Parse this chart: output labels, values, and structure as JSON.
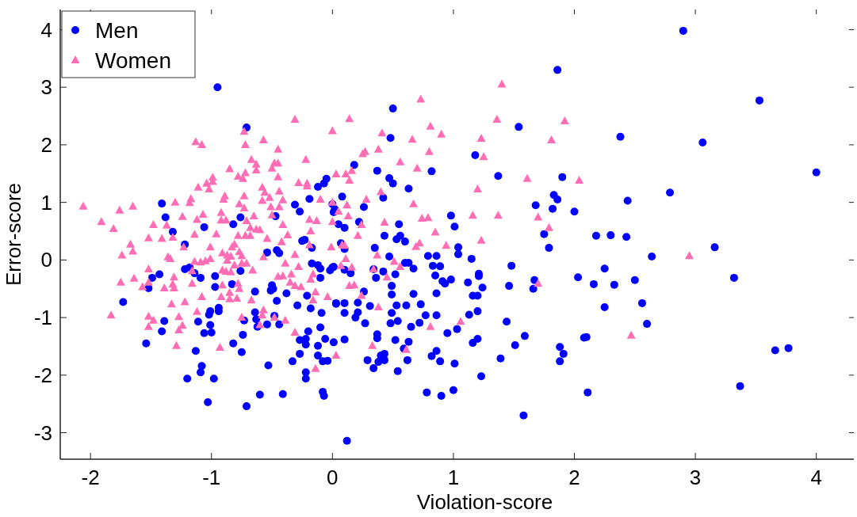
{
  "chart_data": {
    "type": "scatter",
    "xlabel": "Violation-score",
    "ylabel": "Error-score",
    "xlim": [
      -2.25,
      4.31
    ],
    "ylim": [
      -3.46,
      4.35
    ],
    "xticks": [
      -2,
      -1,
      0,
      1,
      2,
      3,
      4
    ],
    "yticks": [
      -3,
      -2,
      -1,
      0,
      1,
      2,
      3,
      4
    ],
    "legend": "top left",
    "grid": false,
    "series": [
      {
        "name": "Men",
        "color": "#0000ff",
        "marker": "circle",
        "x": [
          -0.95,
          -0.71,
          2.9,
          1.86,
          4.0,
          3.53,
          3.06,
          2.38,
          1.54,
          0.5,
          0.48,
          0.12,
          1.58,
          3.37,
          3.66,
          3.77,
          3.32,
          3.16,
          2.79,
          2.44,
          1.9,
          2.18,
          2.3,
          2.43,
          2.64,
          2.25,
          2.16,
          2.33,
          2.5,
          2.25,
          2.56,
          2.6,
          2.1,
          2.11,
          1.18,
          0.18,
          0.37,
          0.82,
          0.47,
          0.5,
          0.63,
          1.37,
          0.08,
          0.42,
          1.83,
          1.86,
          1.68,
          1.82,
          2.0,
          0.26,
          0.02,
          0.98,
          1.01,
          0.55,
          0.22,
          0.1,
          0.43,
          0.56,
          0.53,
          1.75,
          0.6,
          0.35,
          1.04,
          1.04,
          1.15,
          1.79,
          0.1,
          0.07,
          0.47,
          0.79,
          0.86,
          0.6,
          0.63,
          0.67,
          0.83,
          0.89,
          1.48,
          2.03,
          0.01,
          0.1,
          0.15,
          0.34,
          0.42,
          0.36,
          0.52,
          0.85,
          0.91,
          0.93,
          0.98,
          1.12,
          1.21,
          1.21,
          1.24,
          1.16,
          1.2,
          1.46,
          1.67,
          1.66,
          0.26,
          0.49,
          0.49,
          0.67,
          0.86,
          0.03,
          0.1,
          0.21,
          0.31,
          0.53,
          0.61,
          0.73,
          0.1,
          0.21,
          0.19,
          0.49,
          0.27,
          0.48,
          0.54,
          0.65,
          0.72,
          0.77,
          0.86,
          1.13,
          1.2,
          1.44,
          0.95,
          1.03,
          0.37,
          0.37,
          0.52,
          0.63,
          0.01,
          0.1,
          1.16,
          1.2,
          1.59,
          1.51,
          1.88,
          1.91,
          1.88,
          2.08,
          1.39,
          0.86,
          0.82,
          0.89,
          1.01,
          0.59,
          0.62,
          0.4,
          0.43,
          0.38,
          0.43,
          0.29,
          0.34,
          0.54,
          1.23,
          0.78,
          0.9,
          1.0,
          -0.05,
          -0.07,
          -0.12,
          -1.41,
          -1.38,
          -1.32,
          -1.06,
          -0.82,
          -0.76,
          -0.47,
          -0.31,
          -0.19,
          0.0,
          0.01,
          0.05,
          -0.27,
          -0.23,
          -1.22,
          -0.54,
          -0.46,
          -0.44,
          -0.25,
          -0.17,
          -0.17,
          -0.12,
          -0.1,
          -0.02,
          0.0,
          -0.1,
          -1.22,
          -1.18,
          -1.14,
          -1.09,
          -0.97,
          -0.76,
          -1.49,
          -1.43,
          -1.52,
          -0.97,
          -0.83,
          -0.64,
          -0.5,
          -0.51,
          -0.49,
          -0.38,
          -0.46,
          -0.21,
          -0.29,
          -0.18,
          -0.09,
          0.03,
          -1.73,
          -1.01,
          -1.02,
          -0.94,
          -0.94,
          -1.39,
          -1.41,
          -1.11,
          -1.01,
          -1.06,
          -1.0,
          -1.54,
          -1.13,
          -1.08,
          -1.09,
          -1.2,
          -0.98,
          -1.03,
          -0.71,
          -0.6,
          -0.41,
          -0.73,
          -0.64,
          -0.63,
          -0.62,
          -0.54,
          -0.48,
          -0.44,
          -0.74,
          -0.82,
          -0.75,
          -0.53,
          -0.33,
          -0.27,
          -0.22,
          -0.22,
          -0.2,
          -0.27,
          -0.22,
          -0.22,
          -0.12,
          -0.1,
          -0.06,
          -0.12,
          -0.08,
          -0.04,
          -0.08,
          -0.07
        ],
        "values": [
          3.0,
          2.3,
          3.98,
          3.3,
          1.52,
          2.77,
          2.04,
          2.14,
          2.31,
          2.63,
          2.12,
          -3.14,
          -2.7,
          -2.19,
          -1.57,
          -1.53,
          -0.31,
          0.22,
          1.17,
          1.03,
          1.44,
          0.42,
          0.43,
          0.4,
          0.06,
          -0.15,
          -0.42,
          -0.43,
          -0.35,
          -0.82,
          -0.75,
          -1.11,
          -1.34,
          -2.3,
          1.82,
          1.65,
          1.55,
          1.54,
          1.42,
          1.33,
          1.24,
          1.46,
          1.1,
          1.08,
          1.13,
          1.05,
          0.95,
          0.89,
          0.84,
          0.92,
          0.88,
          0.77,
          0.58,
          0.62,
          0.66,
          0.56,
          0.42,
          0.42,
          0.36,
          0.45,
          0.32,
          0.21,
          0.22,
          0.1,
          0.02,
          0.21,
          0.19,
          0.29,
          0.06,
          0.07,
          0.07,
          -0.05,
          -0.05,
          -0.15,
          -0.1,
          -0.11,
          -0.1,
          -0.3,
          -0.12,
          -0.17,
          -0.23,
          -0.16,
          -0.2,
          -0.31,
          -0.25,
          -0.27,
          -0.37,
          -0.41,
          -0.34,
          -0.39,
          -0.24,
          -0.28,
          -0.48,
          -0.62,
          -0.62,
          -0.45,
          -0.35,
          -0.5,
          -0.55,
          -0.45,
          -0.6,
          -0.59,
          -0.58,
          -0.75,
          -0.75,
          -0.74,
          -0.8,
          -0.79,
          -0.79,
          -0.77,
          -0.92,
          -0.91,
          -1.0,
          -0.92,
          -1.1,
          -1.1,
          -1.06,
          -1.16,
          -1.09,
          -0.96,
          -0.96,
          -0.95,
          -0.89,
          -1.07,
          -1.27,
          -1.2,
          -1.29,
          -1.36,
          -1.39,
          -1.42,
          -1.43,
          -1.38,
          -1.44,
          -1.37,
          -1.32,
          -1.48,
          -1.51,
          -1.63,
          -1.76,
          -1.35,
          -1.71,
          -1.58,
          -1.67,
          -1.76,
          -1.8,
          -1.54,
          -1.74,
          -1.66,
          -1.63,
          -1.77,
          -1.74,
          -1.74,
          -1.88,
          -1.93,
          -2.02,
          -2.3,
          -2.36,
          -2.26,
          1.41,
          1.33,
          1.27,
          0.98,
          0.74,
          0.49,
          0.57,
          0.62,
          0.74,
          0.76,
          0.96,
          1.06,
          0.97,
          0.83,
          0.62,
          0.84,
          0.35,
          0.27,
          0.13,
          0.17,
          0.12,
          0.33,
          0.21,
          -0.06,
          -0.09,
          -0.15,
          -0.18,
          -0.13,
          -0.31,
          -0.16,
          -0.13,
          -0.23,
          -0.31,
          -0.28,
          -0.19,
          -0.31,
          -0.25,
          -0.49,
          -0.47,
          -0.42,
          -0.55,
          -0.44,
          -0.53,
          -0.5,
          -0.58,
          -0.71,
          -0.62,
          -0.79,
          -0.84,
          -0.92,
          -0.76,
          -0.73,
          -0.89,
          -0.95,
          -0.83,
          -0.89,
          -1.06,
          -1.24,
          -1.07,
          -1.13,
          -1.27,
          -1.26,
          -1.45,
          -1.58,
          -1.84,
          -1.95,
          -2.06,
          -2.06,
          -2.47,
          -2.54,
          -2.34,
          -2.33,
          -1.05,
          -0.91,
          -1.03,
          -1.16,
          -1.12,
          -0.97,
          -1.12,
          -1.3,
          -1.45,
          -1.6,
          -1.83,
          -1.76,
          -1.63,
          -1.95,
          -2.06,
          -1.24,
          -1.39,
          -1.37,
          -1.47,
          -1.49,
          -1.17,
          -1.37,
          -1.66,
          -1.76,
          -1.75,
          -2.29,
          -2.36
        ]
      },
      {
        "name": "Women",
        "color": "#ff6eb4",
        "marker": "triangle",
        "x": [
          2.95,
          2.47,
          1.4,
          0.73,
          0.14,
          1.36,
          1.92,
          0.81,
          0.9,
          0.41,
          0.66,
          1.23,
          1.81,
          1.25,
          0.25,
          0.27,
          0.38,
          0.8,
          0.56,
          0.7,
          1.61,
          2.04,
          1.2,
          0.03,
          0.11,
          0.16,
          0.14,
          0.4,
          0.28,
          0.67,
          0.12,
          1.16,
          1.37,
          1.7,
          1.79,
          0.74,
          0.79,
          0.43,
          0.24,
          0.85,
          0.21,
          0.13,
          0.05,
          1.23,
          0.69,
          0.72,
          0.94,
          0.1,
          0.37,
          0.11,
          0.07,
          0.16,
          0.51,
          0.56,
          0.34,
          0.45,
          0.14,
          0.18,
          0.24,
          0.38,
          1.06,
          0.81,
          1.7,
          0.33,
          0.61,
          0.03,
          -0.73,
          -0.31,
          0.0,
          -1.13,
          -1.08,
          -0.72,
          -0.57,
          -0.45,
          -0.67,
          -0.63,
          -0.22,
          -0.48,
          -0.45,
          -0.5,
          -0.63,
          -0.85,
          -0.72,
          -0.78,
          -0.74,
          -0.45,
          -0.99,
          -1.04,
          -0.99,
          -1.11,
          -1.02,
          -0.28,
          -0.21,
          -0.21,
          -0.58,
          -0.56,
          -0.44,
          -1.17,
          -1.18,
          -0.89,
          -0.9,
          -0.73,
          -0.58,
          -0.52,
          -0.41,
          -0.51,
          -0.44,
          -0.77,
          -0.73,
          -1.3,
          -0.1,
          0.0,
          -2.06,
          -1.76,
          -1.65,
          -1.91,
          -1.81,
          -1.48,
          -1.37,
          -1.24,
          -1.07,
          -1.12,
          -0.92,
          -0.88,
          -0.92,
          -0.65,
          -0.71,
          -0.68,
          -0.63,
          -0.6,
          -0.5,
          -0.41,
          -0.19,
          -0.13,
          0.0,
          -0.18,
          -0.37,
          -1.14,
          -0.96,
          -1.52,
          -1.41,
          -1.32,
          -0.72,
          -0.68,
          -0.54,
          -1.67,
          -1.65,
          -1.74,
          -1.23,
          -1.36,
          -1.34,
          -1.01,
          -0.91,
          -0.87,
          -0.83,
          -0.81,
          -0.77,
          -0.75,
          -0.78,
          -1.14,
          -1.09,
          -1.05,
          -1.01,
          -0.87,
          -0.84,
          -0.81,
          -0.75,
          -0.71,
          -0.91,
          -0.88,
          -0.84,
          -0.66,
          -0.57,
          -0.42,
          -0.31,
          -0.28,
          -0.39,
          -0.34,
          -0.19,
          -0.01,
          0.08,
          -0.16,
          -0.18,
          -0.14,
          -0.16,
          -0.04,
          -0.45,
          -0.41,
          -0.35,
          -0.31,
          -0.26,
          -1.75,
          -1.64,
          -1.52,
          -1.52,
          -1.57,
          -1.39,
          -1.31,
          -1.32,
          -1.31,
          -1.16,
          -1.16,
          -1.08,
          -0.92,
          -0.85,
          -0.79,
          -0.67,
          -0.91,
          -0.85,
          -0.78,
          -0.77,
          -1.33,
          -1.22,
          -1.83,
          -1.52,
          -1.48,
          -1.52,
          -1.27,
          -1.24,
          -1.27,
          -1.12,
          -1.29,
          -0.93,
          -0.75,
          -0.57,
          -0.58,
          -0.6,
          -0.48,
          -0.39,
          -0.31,
          -0.14
        ],
        "values": [
          0.07,
          -1.31,
          3.05,
          2.79,
          2.45,
          2.44,
          2.41,
          2.32,
          2.18,
          2.2,
          2.09,
          2.11,
          2.08,
          1.79,
          1.84,
          1.88,
          1.92,
          1.88,
          1.7,
          1.59,
          1.41,
          1.38,
          1.23,
          1.49,
          1.49,
          1.55,
          1.38,
          1.18,
          1.05,
          0.97,
          0.95,
          0.77,
          0.77,
          0.74,
          0.56,
          0.72,
          0.73,
          0.65,
          0.61,
          0.48,
          0.42,
          0.76,
          0.84,
          0.34,
          0.23,
          0.29,
          0.25,
          0.25,
          0.08,
          0.02,
          -0.1,
          -0.13,
          -0.03,
          -0.12,
          -0.16,
          -0.3,
          -0.45,
          -0.44,
          -0.62,
          -0.82,
          -1.07,
          -1.16,
          -0.41,
          -1.49,
          -1.56,
          -1.66,
          2.23,
          2.44,
          2.24,
          2.05,
          2.0,
          2.0,
          2.08,
          1.92,
          1.74,
          1.66,
          1.74,
          1.68,
          1.68,
          1.59,
          1.56,
          1.58,
          1.51,
          1.45,
          1.41,
          1.44,
          1.43,
          1.33,
          1.36,
          1.26,
          1.23,
          1.34,
          1.33,
          1.28,
          1.26,
          1.17,
          1.19,
          1.06,
          0.99,
          1.11,
          1.05,
          1.11,
          1.03,
          1.08,
          1.04,
          0.92,
          0.92,
          0.97,
          0.9,
          1.0,
          1.05,
          1.0,
          0.93,
          0.86,
          0.93,
          0.66,
          0.54,
          0.61,
          0.6,
          0.75,
          0.79,
          0.7,
          0.82,
          0.69,
          0.69,
          0.76,
          0.68,
          0.56,
          0.53,
          0.52,
          0.78,
          0.61,
          0.7,
          0.68,
          0.66,
          0.5,
          0.43,
          0.44,
          0.45,
          0.38,
          0.37,
          0.39,
          0.42,
          0.42,
          0.37,
          0.27,
          0.15,
          0.08,
          0.22,
          0.05,
          0.02,
          0.22,
          0.12,
          0.08,
          0.22,
          0.27,
          0.14,
          0.07,
          0.42,
          -0.03,
          -0.04,
          -0.02,
          0.02,
          -0.01,
          0.06,
          -0.09,
          -0.06,
          -0.06,
          -0.18,
          -0.2,
          -0.21,
          -0.18,
          0.05,
          0.31,
          0.09,
          -0.12,
          -0.06,
          -0.25,
          0.26,
          0.22,
          0.26,
          -0.25,
          -0.34,
          -0.56,
          -0.7,
          -0.64,
          -0.29,
          -0.28,
          -0.39,
          -0.45,
          -0.47,
          -0.39,
          -0.32,
          -0.16,
          -0.39,
          -0.47,
          -0.49,
          -0.3,
          -0.42,
          -0.49,
          -0.41,
          -0.19,
          -0.64,
          -0.64,
          -0.68,
          -0.67,
          -0.7,
          -0.44,
          -0.57,
          -0.41,
          -0.5,
          -0.77,
          -0.73,
          -0.96,
          -0.98,
          -1.05,
          -1.16,
          -0.99,
          -1.14,
          -1.22,
          -0.9,
          -1.49,
          -1.52,
          -1.0,
          -0.87,
          -0.96,
          -1.13,
          -1.0,
          -1.05,
          -1.26,
          -1.89
        ]
      }
    ]
  }
}
